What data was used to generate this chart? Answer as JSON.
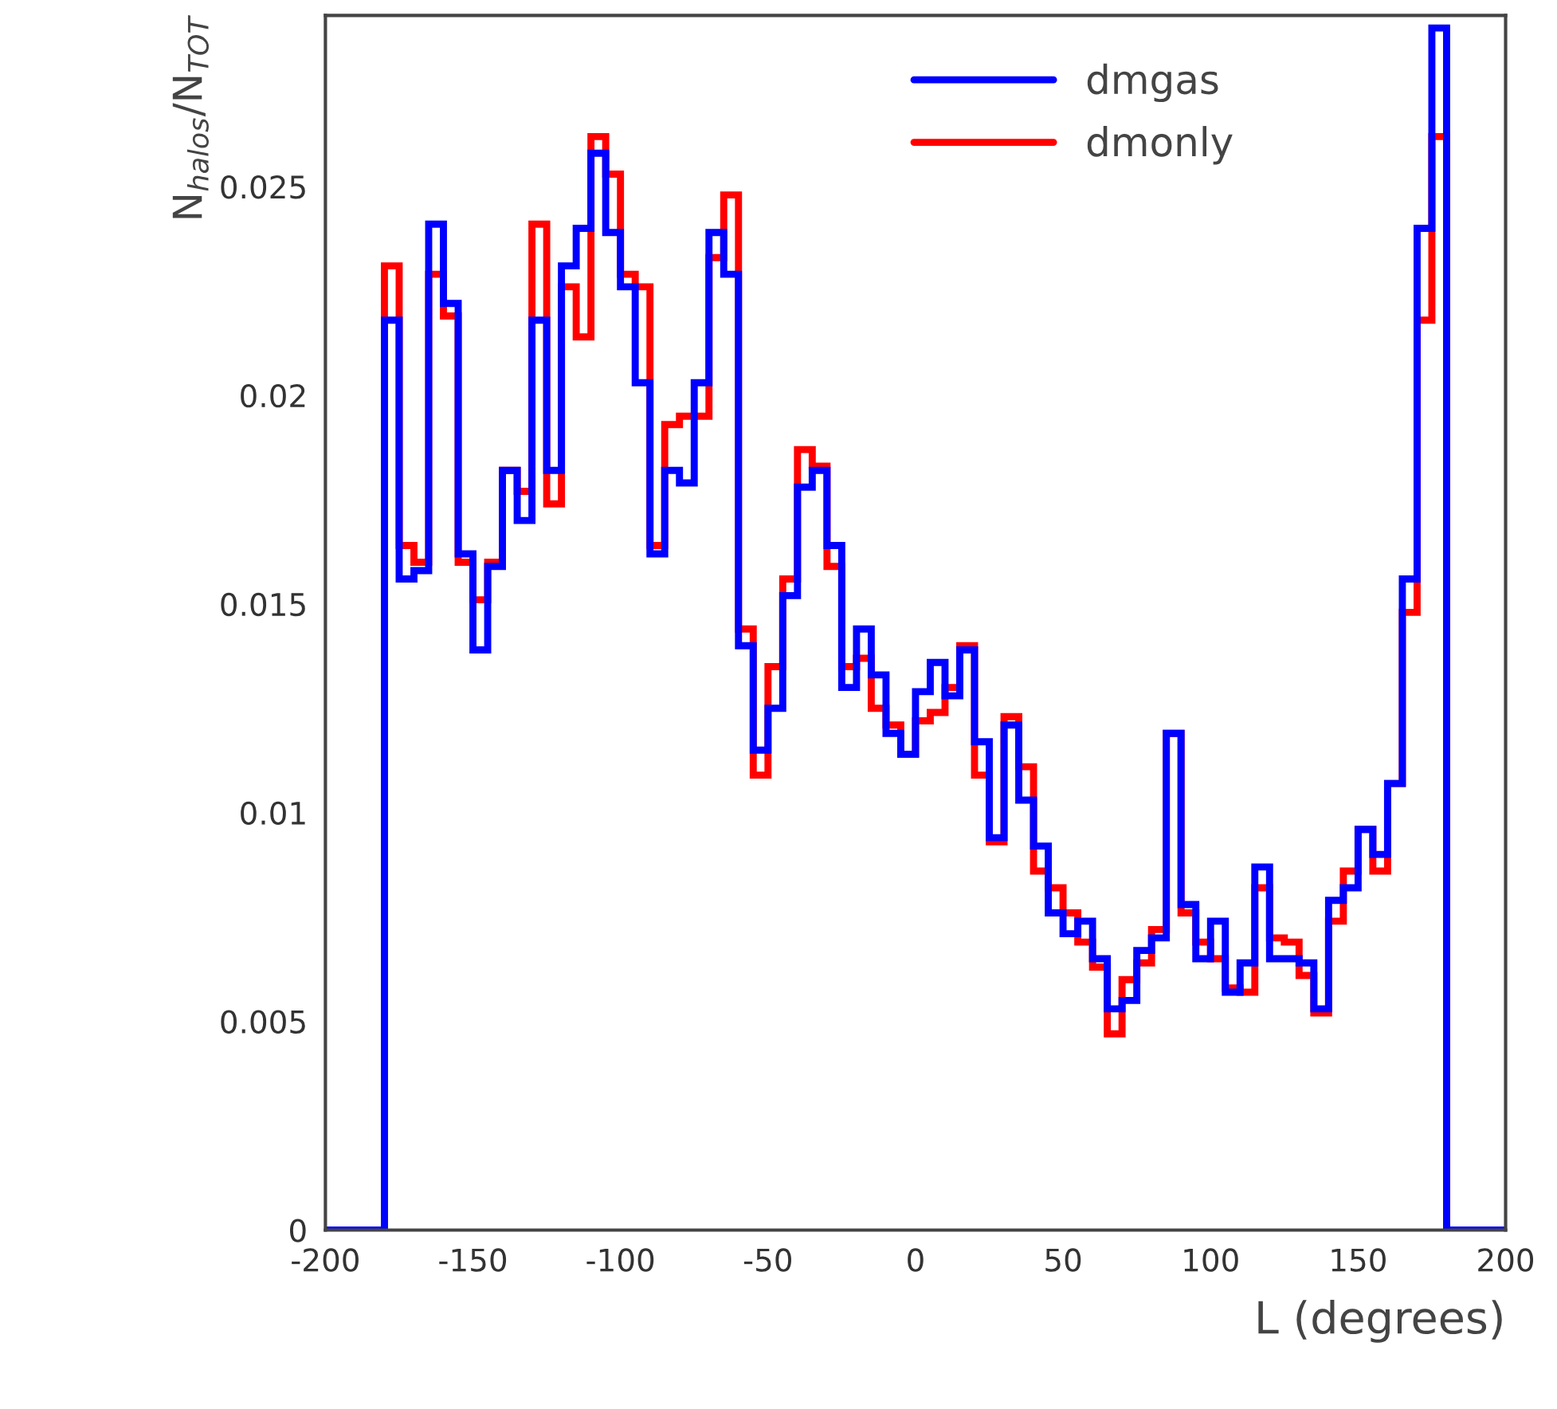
{
  "chart_data": {
    "type": "histogram",
    "xlabel": "L (degrees)",
    "ylabel": "N$_{halos}$/N$_{TOT}$",
    "bins": [
      -200,
      -195,
      -190,
      -185,
      -180,
      -175,
      -170,
      -165,
      -160,
      -155,
      -150,
      -145,
      -140,
      -135,
      -130,
      -125,
      -120,
      -115,
      -110,
      -105,
      -100,
      -95,
      -90,
      -85,
      -80,
      -75,
      -70,
      -65,
      -60,
      -55,
      -50,
      -45,
      -40,
      -35,
      -30,
      -25,
      -20,
      -15,
      -10,
      -5,
      0,
      5,
      10,
      15,
      20,
      25,
      30,
      35,
      40,
      45,
      50,
      55,
      60,
      65,
      70,
      75,
      80,
      85,
      90,
      95,
      100,
      105,
      110,
      115,
      120,
      125,
      130,
      135,
      140,
      145,
      150,
      155,
      160,
      165,
      170,
      175,
      180,
      185,
      190,
      195,
      200
    ],
    "series": [
      {
        "name": "dmonly",
        "color": "#ff0000",
        "values": [
          0,
          0,
          0,
          0,
          0.0231,
          0.0164,
          0.016,
          0.0229,
          0.0219,
          0.016,
          0.0151,
          0.016,
          0.0182,
          0.0177,
          0.0241,
          0.0174,
          0.0226,
          0.0214,
          0.0262,
          0.0253,
          0.0229,
          0.0226,
          0.0164,
          0.0193,
          0.0195,
          0.0195,
          0.0233,
          0.0248,
          0.0144,
          0.0109,
          0.0135,
          0.0156,
          0.0187,
          0.0183,
          0.0159,
          0.0135,
          0.0137,
          0.0125,
          0.0121,
          0.0114,
          0.0122,
          0.0124,
          0.013,
          0.014,
          0.0109,
          0.0093,
          0.0123,
          0.0111,
          0.0086,
          0.0082,
          0.0076,
          0.0069,
          0.0063,
          0.0047,
          0.006,
          0.0064,
          0.0072,
          0.0119,
          0.0076,
          0.0069,
          0.0065,
          0.0058,
          0.0057,
          0.0082,
          0.007,
          0.0069,
          0.0061,
          0.0052,
          0.0074,
          0.0086,
          0.0096,
          0.0086,
          0.0107,
          0.0148,
          0.0218,
          0.0262,
          0,
          0,
          0,
          0
        ]
      },
      {
        "name": "dmgas",
        "color": "#0000ff",
        "values": [
          0,
          0,
          0,
          0,
          0.0218,
          0.0156,
          0.0158,
          0.0241,
          0.0222,
          0.0162,
          0.0139,
          0.0159,
          0.0182,
          0.017,
          0.0218,
          0.0182,
          0.0231,
          0.024,
          0.0258,
          0.0239,
          0.0226,
          0.0203,
          0.0162,
          0.0182,
          0.0179,
          0.0203,
          0.0239,
          0.0229,
          0.014,
          0.0115,
          0.0125,
          0.0152,
          0.0178,
          0.0182,
          0.0164,
          0.013,
          0.0144,
          0.0133,
          0.0119,
          0.0114,
          0.0129,
          0.0136,
          0.0128,
          0.0139,
          0.0117,
          0.0094,
          0.0121,
          0.0103,
          0.0092,
          0.0076,
          0.0071,
          0.0074,
          0.0065,
          0.0053,
          0.0055,
          0.0067,
          0.007,
          0.0119,
          0.0078,
          0.0065,
          0.0074,
          0.0057,
          0.0064,
          0.0087,
          0.0065,
          0.0065,
          0.0064,
          0.0053,
          0.0079,
          0.0082,
          0.0096,
          0.009,
          0.0107,
          0.0156,
          0.024,
          0.0288,
          0,
          0,
          0,
          0
        ]
      }
    ],
    "xlim": [
      -200,
      200
    ],
    "xticks": [
      -200,
      -150,
      -100,
      -50,
      0,
      50,
      100,
      150,
      200
    ],
    "ylim": [
      0,
      0.0291
    ],
    "yticks": [
      0,
      0.005,
      0.01,
      0.015,
      0.02,
      0.025
    ],
    "grid": false,
    "legend": "top right"
  }
}
